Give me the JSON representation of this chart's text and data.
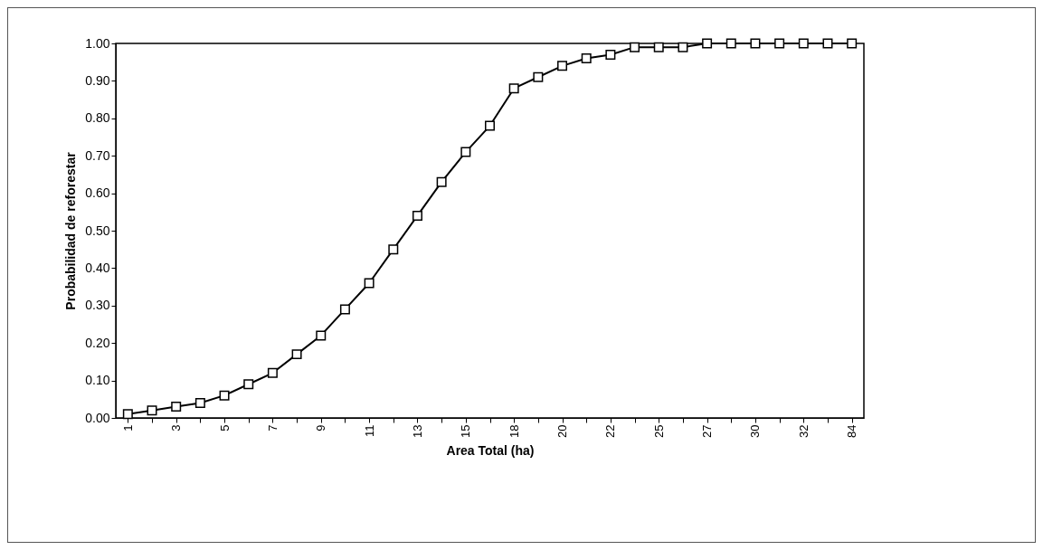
{
  "chart_data": {
    "type": "line",
    "xlabel": "Area Total (ha)",
    "ylabel": "Probabilidad de reforestar",
    "categories": [
      "1",
      null,
      "3",
      null,
      "5",
      null,
      "7",
      null,
      "9",
      null,
      "11",
      null,
      "13",
      null,
      "15",
      null,
      "18",
      null,
      "20",
      null,
      "22",
      null,
      "25",
      null,
      "27",
      null,
      "30",
      null,
      "32",
      null,
      "84"
    ],
    "series": [
      {
        "color": "#000000",
        "values": [
          0.01,
          0.02,
          0.03,
          0.04,
          0.06,
          0.09,
          0.12,
          0.17,
          0.22,
          0.29,
          0.36,
          0.45,
          0.54,
          0.63,
          0.71,
          0.78,
          0.88,
          0.91,
          0.94,
          0.96,
          0.97,
          0.99,
          0.99,
          0.99,
          1.0,
          1.0,
          1.0,
          1.0,
          1.0,
          1.0,
          1.0
        ]
      }
    ],
    "ylim": [
      0,
      1
    ],
    "yticks": [
      {
        "value": 0,
        "label": "0.00"
      },
      {
        "value": 0.1,
        "label": "0.10"
      },
      {
        "value": 0.2,
        "label": "0.20"
      },
      {
        "value": 0.3,
        "label": "0.30"
      },
      {
        "value": 0.4,
        "label": "0.40"
      },
      {
        "value": 0.5,
        "label": "0.50"
      },
      {
        "value": 0.6,
        "label": "0.60"
      },
      {
        "value": 0.7,
        "label": "0.70"
      },
      {
        "value": 0.8,
        "label": "0.80"
      },
      {
        "value": 0.9,
        "label": "0.90"
      },
      {
        "value": 1,
        "label": "1.00"
      }
    ],
    "grid": false,
    "legend": false,
    "marker": "square",
    "line_style": "solid"
  }
}
